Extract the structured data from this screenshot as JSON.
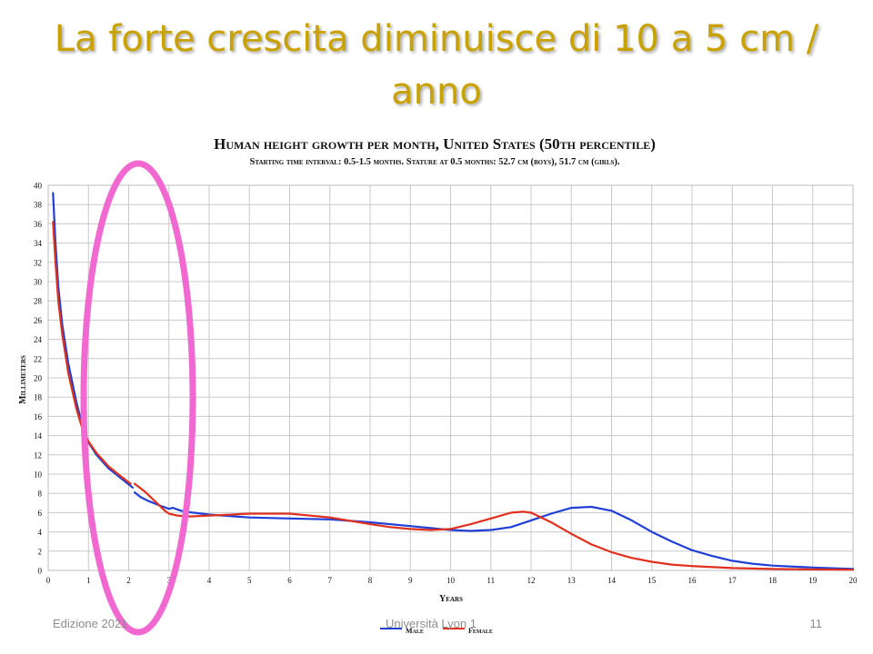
{
  "slide": {
    "title": "La forte crescita diminuisce di 10 a 5 cm / anno",
    "footer_left": "Edizione 2021",
    "footer_center": "Università Lyon 1",
    "footer_right": "11"
  },
  "colors": {
    "title": "#c9a200",
    "male": "#1f3fd6",
    "female": "#e0301e",
    "highlight_ellipse": "#f068d0",
    "grid": "#c8c8c8"
  },
  "chart_data": {
    "type": "line",
    "title": "Human height growth per month, United States (50th percentile)",
    "subtitle": "Starting time interval: 0.5-1.5 months. Stature at 0.5 months: 52.7 cm (boys), 51.7 cm (girls).",
    "xlabel": "Years",
    "ylabel": "Millimeters",
    "xlim": [
      0,
      20
    ],
    "ylim": [
      0,
      40
    ],
    "xticks": [
      0,
      1,
      2,
      3,
      4,
      5,
      6,
      7,
      8,
      9,
      10,
      11,
      12,
      13,
      14,
      15,
      16,
      17,
      18,
      19,
      20
    ],
    "yticks": [
      0,
      2,
      4,
      6,
      8,
      10,
      12,
      14,
      16,
      18,
      20,
      22,
      24,
      26,
      28,
      30,
      32,
      34,
      36,
      38,
      40
    ],
    "grid": true,
    "legend_position": "bottom-center",
    "annotation": "highlight ellipse around ages 1 to 3",
    "series": [
      {
        "name": "Male",
        "color": "#1f3fd6",
        "segments": [
          [
            [
              0.12,
              39.2
            ],
            [
              0.18,
              34
            ],
            [
              0.25,
              29.5
            ],
            [
              0.35,
              25.5
            ],
            [
              0.5,
              21.5
            ],
            [
              0.7,
              17.5
            ],
            [
              0.85,
              15
            ],
            [
              1.0,
              13.3
            ],
            [
              1.2,
              12
            ],
            [
              1.5,
              10.6
            ],
            [
              1.8,
              9.6
            ],
            [
              2.1,
              8.6
            ]
          ],
          [
            [
              2.15,
              8.1
            ],
            [
              2.3,
              7.6
            ],
            [
              2.5,
              7.2
            ],
            [
              2.8,
              6.7
            ],
            [
              3.0,
              6.4
            ],
            [
              3.1,
              6.5
            ],
            [
              3.3,
              6.2
            ],
            [
              3.6,
              6.0
            ],
            [
              4.0,
              5.8
            ],
            [
              5.0,
              5.5
            ],
            [
              6.0,
              5.4
            ],
            [
              7.0,
              5.3
            ],
            [
              8.0,
              5.0
            ],
            [
              9.0,
              4.6
            ],
            [
              10.0,
              4.2
            ],
            [
              10.5,
              4.1
            ],
            [
              11.0,
              4.2
            ],
            [
              11.5,
              4.5
            ],
            [
              12.0,
              5.2
            ],
            [
              12.5,
              5.9
            ],
            [
              13.0,
              6.5
            ],
            [
              13.5,
              6.6
            ],
            [
              14.0,
              6.2
            ],
            [
              14.5,
              5.2
            ],
            [
              15.0,
              4.0
            ],
            [
              15.5,
              3.0
            ],
            [
              16.0,
              2.1
            ],
            [
              16.5,
              1.5
            ],
            [
              17.0,
              1.0
            ],
            [
              17.5,
              0.7
            ],
            [
              18.0,
              0.5
            ],
            [
              19.0,
              0.3
            ],
            [
              20.0,
              0.15
            ]
          ]
        ]
      },
      {
        "name": "Female",
        "color": "#e0301e",
        "segments": [
          [
            [
              0.12,
              36.2
            ],
            [
              0.18,
              32
            ],
            [
              0.25,
              28
            ],
            [
              0.35,
              24.5
            ],
            [
              0.5,
              20.5
            ],
            [
              0.7,
              16.8
            ],
            [
              0.85,
              14.7
            ],
            [
              1.0,
              13.4
            ],
            [
              1.2,
              12.2
            ],
            [
              1.5,
              10.8
            ],
            [
              1.8,
              9.8
            ],
            [
              2.05,
              9.0
            ]
          ],
          [
            [
              2.15,
              9.0
            ],
            [
              2.4,
              8.2
            ],
            [
              2.7,
              7.0
            ],
            [
              2.9,
              6.2
            ],
            [
              3.0,
              5.9
            ],
            [
              3.2,
              5.7
            ],
            [
              3.5,
              5.6
            ],
            [
              4.0,
              5.7
            ],
            [
              5.0,
              5.9
            ],
            [
              6.0,
              5.9
            ],
            [
              7.0,
              5.5
            ],
            [
              8.0,
              4.8
            ],
            [
              8.5,
              4.5
            ],
            [
              9.0,
              4.3
            ],
            [
              9.5,
              4.2
            ],
            [
              10.0,
              4.3
            ],
            [
              10.5,
              4.8
            ],
            [
              11.0,
              5.4
            ],
            [
              11.5,
              6.0
            ],
            [
              11.8,
              6.1
            ],
            [
              12.0,
              6.0
            ],
            [
              12.5,
              5.0
            ],
            [
              13.0,
              3.8
            ],
            [
              13.5,
              2.7
            ],
            [
              14.0,
              1.9
            ],
            [
              14.5,
              1.3
            ],
            [
              15.0,
              0.9
            ],
            [
              15.5,
              0.6
            ],
            [
              16.0,
              0.45
            ],
            [
              17.0,
              0.25
            ],
            [
              18.0,
              0.15
            ],
            [
              19.0,
              0.1
            ],
            [
              20.0,
              0.08
            ]
          ]
        ]
      }
    ]
  }
}
